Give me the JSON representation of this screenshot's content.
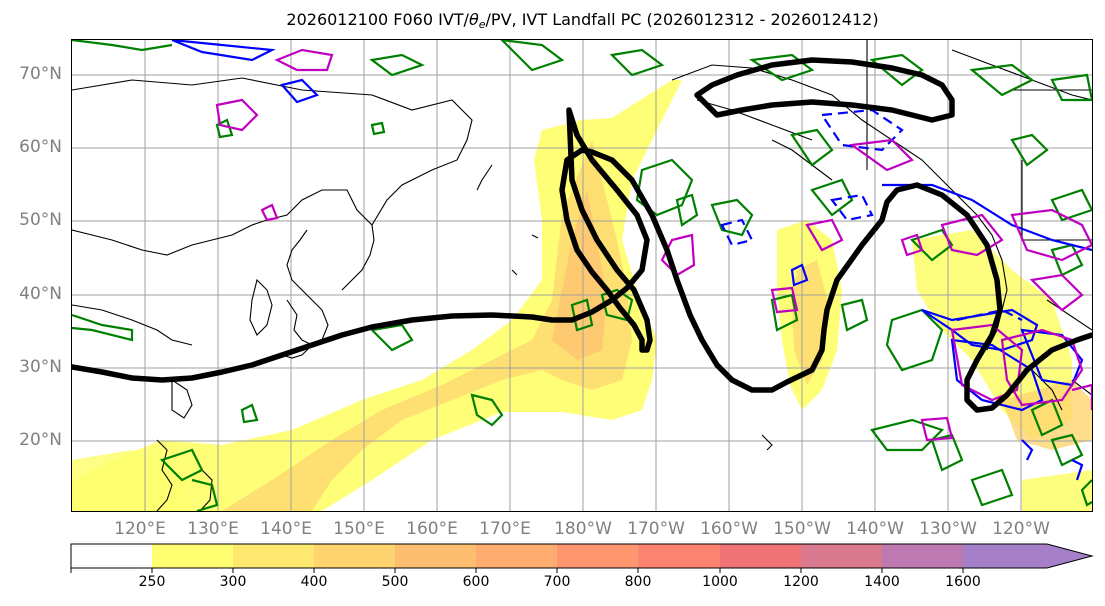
{
  "figure": {
    "title_prefix": "2026012100 F060 IVT/",
    "title_theta": "θ",
    "title_sub": "e",
    "title_suffix": "/PV, IVT Landfall PC (2026012312 - 2026012412)"
  },
  "map": {
    "lat_labels": [
      "70°N",
      "60°N",
      "50°N",
      "40°N",
      "30°N",
      "20°N"
    ],
    "lon_labels": [
      "120°E",
      "130°E",
      "140°E",
      "150°E",
      "160°E",
      "170°E",
      "180°W",
      "170°W",
      "160°W",
      "150°W",
      "140°W",
      "130°W",
      "120°W"
    ],
    "contour_colors": {
      "landfall_pc": "#000000",
      "green_contour": "#008000",
      "blue_contour": "#0000ff",
      "magenta_contour": "#c000c0",
      "coastline": "#000000"
    }
  },
  "colorbar": {
    "levels": [
      "250",
      "300",
      "400",
      "500",
      "600",
      "700",
      "800",
      "1000",
      "1200",
      "1400",
      "1600"
    ],
    "colors": [
      "#fefe70",
      "#fee870",
      "#fed470",
      "#febe70",
      "#feac70",
      "#fe9670",
      "#fb8372",
      "#f07476",
      "#d97a8f",
      "#bc7ab0",
      "#a57fc8"
    ]
  }
}
